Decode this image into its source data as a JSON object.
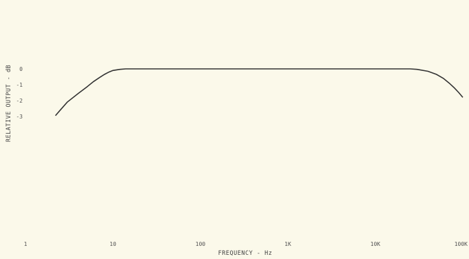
{
  "chart_data": {
    "type": "line",
    "xlabel": "FREQUENCY - Hz",
    "ylabel": "RELATIVE OUTPUT - dB",
    "x_scale": "log",
    "xlim": [
      1,
      100000
    ],
    "ylim": [
      -3,
      0
    ],
    "x_tick_labels": [
      "1",
      "10",
      "100",
      "1K",
      "10K",
      "100K"
    ],
    "y_tick_labels": [
      "0",
      "-1",
      "-2",
      "-3"
    ],
    "grid": false,
    "legend": "none",
    "series": [
      {
        "x": [
          2.2,
          2.5,
          3,
          4,
          5,
          6,
          7,
          8,
          9,
          10,
          12,
          14,
          16,
          20,
          100,
          1000,
          10000,
          25000,
          30000,
          40000,
          50000,
          60000,
          70000,
          80000,
          90000,
          100000
        ],
        "y": [
          -2.95,
          -2.6,
          -2.1,
          -1.55,
          -1.15,
          -0.8,
          -0.55,
          -0.35,
          -0.2,
          -0.1,
          -0.03,
          0,
          0,
          0,
          0,
          0,
          0,
          0,
          -0.03,
          -0.15,
          -0.35,
          -0.6,
          -0.9,
          -1.2,
          -1.5,
          -1.8
        ],
        "color": "#333333"
      }
    ]
  }
}
